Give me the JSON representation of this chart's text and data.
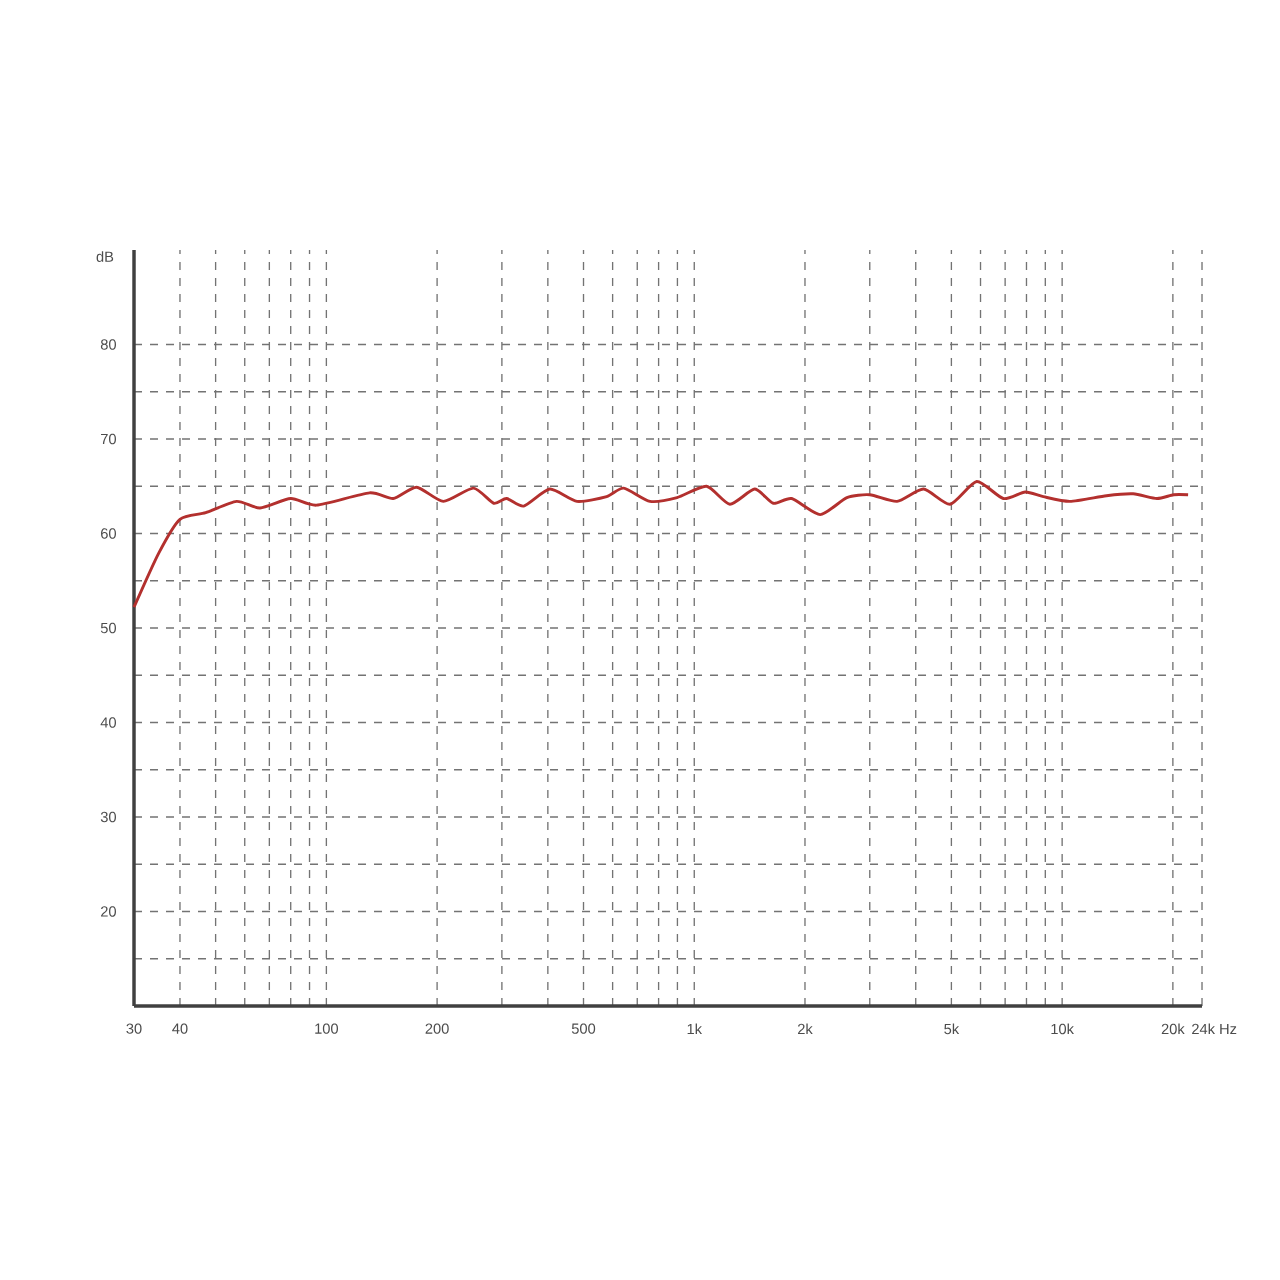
{
  "chart_data": {
    "type": "line",
    "ylabel": "dB",
    "log": "x",
    "grid": true,
    "line_style": "solid",
    "marker": "none",
    "xlim": [
      30,
      24000
    ],
    "ylim": [
      10,
      90
    ],
    "xticks": [
      30,
      40,
      {
        "value": 50,
        "label": null
      },
      {
        "value": 60,
        "label": null
      },
      {
        "value": 70,
        "label": null
      },
      {
        "value": 80,
        "label": null
      },
      {
        "value": 90,
        "label": null
      },
      100,
      200,
      {
        "value": 300,
        "label": null
      },
      {
        "value": 400,
        "label": null
      },
      500,
      {
        "value": 600,
        "label": null
      },
      {
        "value": 700,
        "label": null
      },
      {
        "value": 800,
        "label": null
      },
      {
        "value": 900,
        "label": null
      },
      {
        "value": 1000,
        "label": "1k"
      },
      {
        "value": 2000,
        "label": "2k"
      },
      {
        "value": 3000,
        "label": null
      },
      {
        "value": 4000,
        "label": null
      },
      {
        "value": 5000,
        "label": "5k"
      },
      {
        "value": 6000,
        "label": null
      },
      {
        "value": 7000,
        "label": null
      },
      {
        "value": 8000,
        "label": null
      },
      {
        "value": 9000,
        "label": null
      },
      {
        "value": 10000,
        "label": "10k"
      },
      {
        "value": 20000,
        "label": "20k"
      },
      {
        "value": 24000,
        "label": "24k Hz"
      }
    ],
    "yticks": [
      {
        "value": 15,
        "label": null
      },
      20,
      {
        "value": 25,
        "label": null
      },
      30,
      {
        "value": 35,
        "label": null
      },
      40,
      {
        "value": 45,
        "label": null
      },
      50,
      {
        "value": 55,
        "label": null
      },
      60,
      {
        "value": 65,
        "label": null
      },
      70,
      {
        "value": 75,
        "label": null
      },
      80
    ],
    "series": [
      {
        "color": "#b3302e",
        "x": [
          30,
          35,
          40,
          47,
          57,
          66,
          80,
          94,
          131,
          152,
          176,
          208,
          251,
          285,
          309,
          344,
          405,
          480,
          578,
          643,
          758,
          898,
          1080,
          1250,
          1460,
          1640,
          1840,
          2200,
          2600,
          3000,
          3560,
          4200,
          4960,
          5860,
          6920,
          7940,
          8890,
          10500,
          13200,
          15600,
          18100,
          20100,
          22000
        ],
        "values": [
          52.2,
          57.9,
          61.5,
          62.2,
          63.4,
          62.7,
          63.7,
          63.0,
          64.3,
          63.7,
          64.9,
          63.4,
          64.8,
          63.2,
          63.7,
          62.9,
          64.7,
          63.4,
          63.9,
          64.8,
          63.4,
          63.8,
          65.0,
          63.1,
          64.7,
          63.2,
          63.7,
          62.0,
          63.8,
          64.1,
          63.4,
          64.7,
          63.1,
          65.5,
          63.7,
          64.4,
          63.9,
          63.4,
          64.0,
          64.2,
          63.7,
          64.1,
          64.1
        ]
      }
    ]
  }
}
